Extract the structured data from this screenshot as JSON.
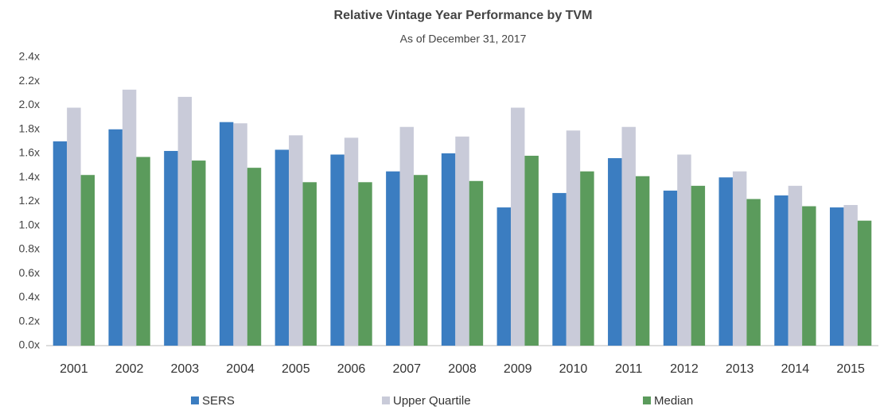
{
  "chart_data": {
    "type": "bar",
    "title": "Relative Vintage Year Performance by TVM",
    "subtitle": "As of December 31, 2017",
    "categories": [
      "2001",
      "2002",
      "2003",
      "2004",
      "2005",
      "2006",
      "2007",
      "2008",
      "2009",
      "2010",
      "2011",
      "2012",
      "2013",
      "2014",
      "2015"
    ],
    "series": [
      {
        "name": "SERS",
        "color": "#3b7dc1",
        "values": [
          1.7,
          1.8,
          1.62,
          1.86,
          1.63,
          1.59,
          1.45,
          1.6,
          1.15,
          1.27,
          1.56,
          1.29,
          1.4,
          1.25,
          1.15
        ]
      },
      {
        "name": "Upper Quartile",
        "color": "#c9cbd9",
        "values": [
          1.98,
          2.13,
          2.07,
          1.85,
          1.75,
          1.73,
          1.82,
          1.74,
          1.98,
          1.79,
          1.82,
          1.59,
          1.45,
          1.33,
          1.17
        ]
      },
      {
        "name": "Median",
        "color": "#5b9b5c",
        "values": [
          1.42,
          1.57,
          1.54,
          1.48,
          1.36,
          1.36,
          1.42,
          1.37,
          1.58,
          1.45,
          1.41,
          1.33,
          1.22,
          1.16,
          1.04
        ]
      }
    ],
    "ylim": [
      0,
      2.4
    ],
    "yticks": [
      {
        "value": 0,
        "label": "0.0x"
      },
      {
        "value": 0.2,
        "label": "0.2x"
      },
      {
        "value": 0.4,
        "label": "0.4x"
      },
      {
        "value": 0.6,
        "label": "0.6x"
      },
      {
        "value": 0.8,
        "label": "0.8x"
      },
      {
        "value": 1.0,
        "label": "1.0x"
      },
      {
        "value": 1.2,
        "label": "1.2x"
      },
      {
        "value": 1.4,
        "label": "1.4x"
      },
      {
        "value": 1.6,
        "label": "1.6x"
      },
      {
        "value": 1.8,
        "label": "1.8x"
      },
      {
        "value": 2.0,
        "label": "2.0x"
      },
      {
        "value": 2.2,
        "label": "2.2x"
      },
      {
        "value": 2.4,
        "label": "2.4x"
      }
    ],
    "grid": false
  }
}
